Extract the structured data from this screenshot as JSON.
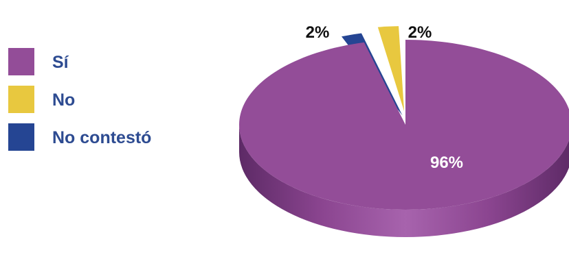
{
  "chart_data": {
    "type": "pie",
    "title": "",
    "slices": [
      {
        "label": "Sí",
        "value": 96,
        "data_label": "96%",
        "color": "#934d98"
      },
      {
        "label": "No",
        "value": 2,
        "data_label": "2%",
        "color": "#e8c83f"
      },
      {
        "label": "No contestó",
        "value": 2,
        "data_label": "2%",
        "color": "#254593"
      }
    ],
    "legend_position": "left",
    "style": "3d-exploded"
  }
}
